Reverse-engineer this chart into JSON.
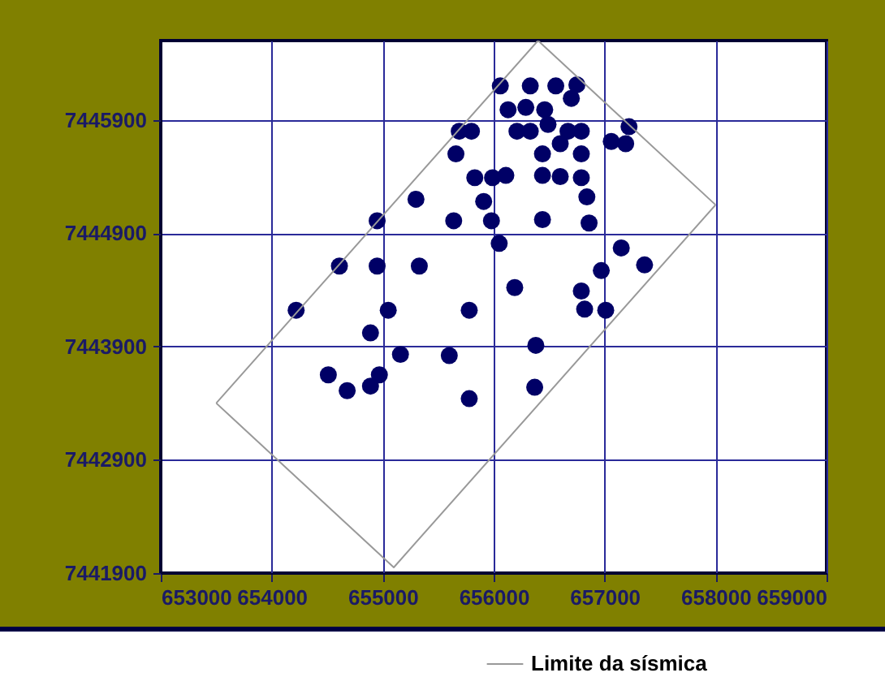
{
  "chart_data": {
    "type": "scatter",
    "xlim": [
      653000,
      659000
    ],
    "ylim": [
      7441900,
      7446600
    ],
    "xticks": [
      653000,
      654000,
      655000,
      656000,
      657000,
      658000,
      659000
    ],
    "yticks": [
      7441900,
      7442900,
      7443900,
      7444900,
      7445900
    ],
    "grid": true,
    "legend": "bottom right",
    "series": [
      {
        "marker": "circle",
        "color": "#000066",
        "x": [
          656060,
          656330,
          656560,
          656750,
          656700,
          656130,
          656290,
          656460,
          655690,
          655800,
          656210,
          656330,
          656490,
          656670,
          656790,
          656600,
          657060,
          657190,
          657220,
          655660,
          656440,
          656790,
          655830,
          655990,
          656110,
          656440,
          656600,
          656790,
          655300,
          655910,
          656840,
          654950,
          655640,
          655980,
          656440,
          656860,
          656050,
          657150,
          657360,
          654610,
          654950,
          655330,
          656970,
          656190,
          656790,
          656820,
          657010,
          654220,
          655050,
          655780,
          654890,
          655160,
          655600,
          656380,
          654510,
          654680,
          654890,
          654970,
          655780,
          656370
        ],
        "values": [
          7446200,
          7446200,
          7446200,
          7446210,
          7446090,
          7445990,
          7446010,
          7445990,
          7445800,
          7445800,
          7445800,
          7445800,
          7445860,
          7445800,
          7445800,
          7445690,
          7445710,
          7445690,
          7445840,
          7445600,
          7445600,
          7445600,
          7445390,
          7445390,
          7445410,
          7445410,
          7445400,
          7445390,
          7445200,
          7445180,
          7445220,
          7445010,
          7445010,
          7445010,
          7445020,
          7444990,
          7444810,
          7444770,
          7444620,
          7444610,
          7444610,
          7444610,
          7444570,
          7444420,
          7444390,
          7444230,
          7444220,
          7444220,
          7444220,
          7444220,
          7444020,
          7443830,
          7443820,
          7443910,
          7443650,
          7443510,
          7443550,
          7443650,
          7443440,
          7443540
        ]
      },
      {
        "type": "line",
        "name": "Limite da sísmica",
        "color": "#999999",
        "x": [
          653500,
          656400,
          658000
        ],
        "values": [
          7443400,
          7446600,
          7445150
        ]
      },
      {
        "type": "line",
        "color": "#999999",
        "x": [
          653500,
          655100,
          658000
        ],
        "values": [
          7443400,
          7441950,
          7445150
        ]
      }
    ]
  }
}
